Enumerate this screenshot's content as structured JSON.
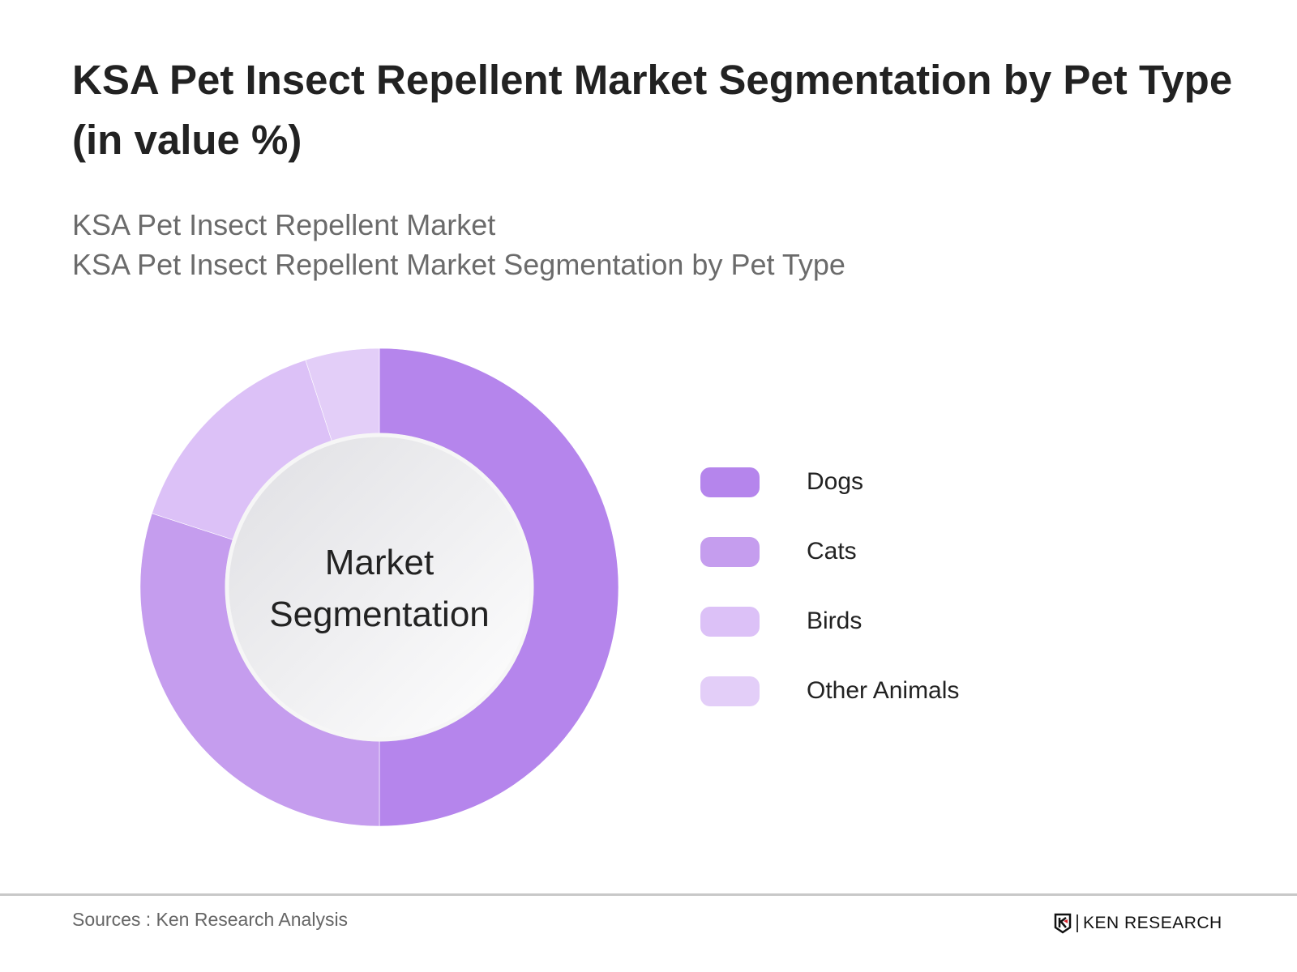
{
  "header": {
    "title": "KSA Pet Insect Repellent Market Segmentation by Pet Type (in value %)",
    "subtitle_1": "KSA Pet Insect Repellent Market",
    "subtitle_2": "KSA Pet Insect Repellent Market Segmentation by Pet Type"
  },
  "chart_data": {
    "type": "pie",
    "variant": "donut",
    "center_label": "Market Segmentation",
    "categories": [
      "Dogs",
      "Cats",
      "Birds",
      "Other Animals"
    ],
    "values": [
      50,
      30,
      15,
      5
    ],
    "unit": "%",
    "colors": [
      "#b585ec",
      "#c59dee",
      "#dcc1f7",
      "#e3cef8"
    ],
    "legend_position": "right"
  },
  "footer": {
    "source": "Sources : Ken Research Analysis",
    "logo": "KEN RESEARCH"
  }
}
